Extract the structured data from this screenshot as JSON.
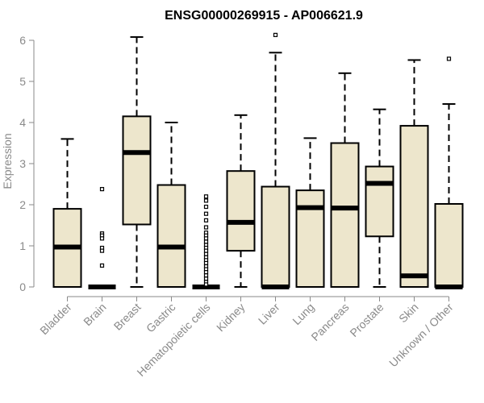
{
  "chart_data": {
    "type": "boxplot",
    "title": "ENSG00000269915 - AP006621.9",
    "xlabel": "",
    "ylabel": "Expression",
    "ylim": [
      0,
      6.15
    ],
    "yticks": [
      0,
      1,
      2,
      3,
      4,
      5,
      6
    ],
    "grid": false,
    "colors": {
      "box_fill": "#ede6cc",
      "stroke": "#000000",
      "axis_text": "#8a8a8a"
    },
    "categories": [
      "Bladder",
      "Brain",
      "Breast",
      "Gastric",
      "Hematopoietic cells",
      "Kidney",
      "Liver",
      "Lung",
      "Pancreas",
      "Prostate",
      "Skin",
      "Unknown / Other"
    ],
    "boxes": [
      {
        "category": "Bladder",
        "whisker_low": 0,
        "q1": 0,
        "median": 0.97,
        "q3": 1.9,
        "whisker_high": 3.6,
        "outliers": []
      },
      {
        "category": "Brain",
        "whisker_low": 0,
        "q1": 0,
        "median": 0,
        "q3": 0,
        "whisker_high": 0,
        "outliers": [
          2.38,
          1.3,
          1.25,
          1.18,
          0.95,
          0.88,
          0.52
        ]
      },
      {
        "category": "Breast",
        "whisker_low": 0,
        "q1": 1.52,
        "median": 3.27,
        "q3": 4.15,
        "whisker_high": 6.08,
        "outliers": []
      },
      {
        "category": "Gastric",
        "whisker_low": 0,
        "q1": 0,
        "median": 0.97,
        "q3": 2.48,
        "whisker_high": 4.0,
        "outliers": []
      },
      {
        "category": "Hematopoietic cells",
        "whisker_low": 0,
        "q1": 0,
        "median": 0,
        "q3": 0,
        "whisker_high": 0,
        "outliers": [
          2.2,
          2.1,
          1.95,
          1.78,
          1.62,
          1.45,
          1.32,
          1.25,
          1.18,
          1.1,
          1.02,
          0.95,
          0.88,
          0.8,
          0.72,
          0.65,
          0.58,
          0.5,
          0.43,
          0.36,
          0.28,
          0.2,
          0.12,
          0.06
        ]
      },
      {
        "category": "Kidney",
        "whisker_low": 0,
        "q1": 0.88,
        "median": 1.57,
        "q3": 2.82,
        "whisker_high": 4.18,
        "outliers": []
      },
      {
        "category": "Liver",
        "whisker_low": 0,
        "q1": 0,
        "median": 0,
        "q3": 2.44,
        "whisker_high": 5.7,
        "outliers": [
          6.13
        ]
      },
      {
        "category": "Lung",
        "whisker_low": 0,
        "q1": 0,
        "median": 1.93,
        "q3": 2.35,
        "whisker_high": 3.62,
        "outliers": []
      },
      {
        "category": "Pancreas",
        "whisker_low": 0,
        "q1": 0,
        "median": 1.92,
        "q3": 3.5,
        "whisker_high": 5.2,
        "outliers": []
      },
      {
        "category": "Prostate",
        "whisker_low": 0,
        "q1": 1.23,
        "median": 2.52,
        "q3": 2.93,
        "whisker_high": 4.32,
        "outliers": []
      },
      {
        "category": "Skin",
        "whisker_low": 0,
        "q1": 0,
        "median": 0.27,
        "q3": 3.92,
        "whisker_high": 5.52,
        "outliers": []
      },
      {
        "category": "Unknown / Other",
        "whisker_low": 0,
        "q1": 0,
        "median": 0,
        "q3": 2.02,
        "whisker_high": 4.45,
        "outliers": [
          5.55
        ]
      }
    ]
  }
}
